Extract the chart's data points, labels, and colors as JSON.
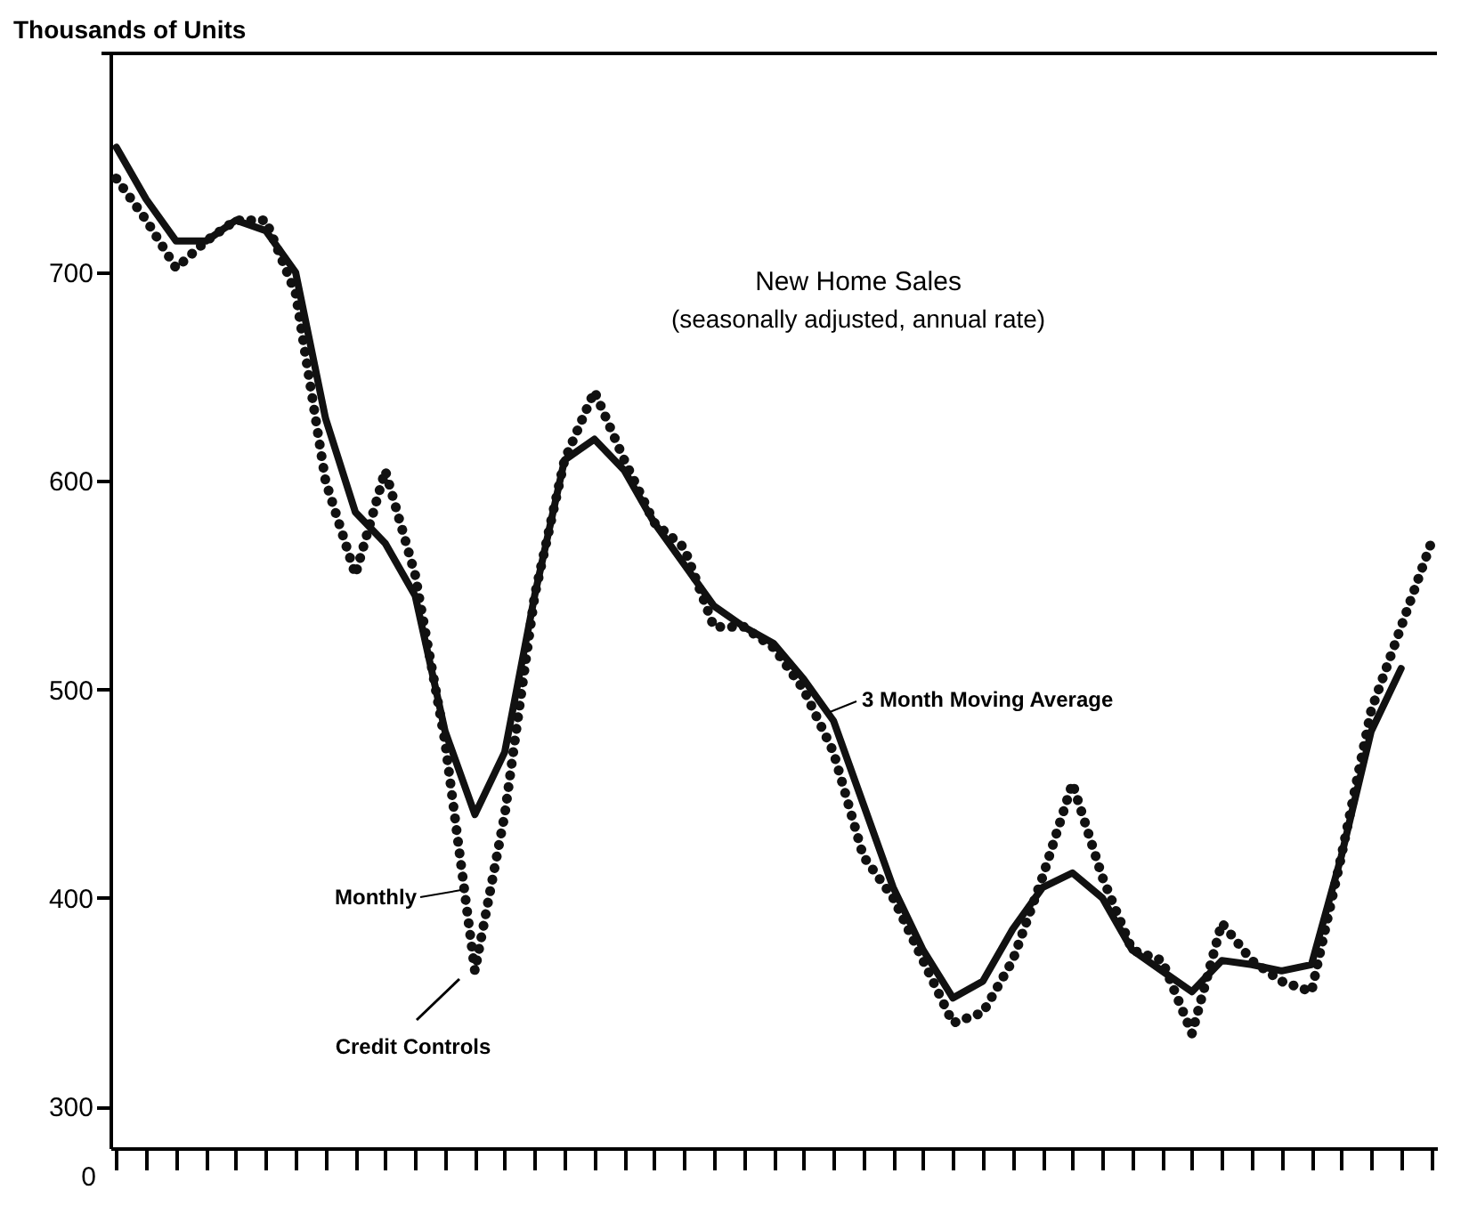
{
  "chart_data": {
    "type": "line",
    "title": "New Home Sales",
    "subtitle": "(seasonally adjusted, annual rate)",
    "ylabel": "Thousands of Units",
    "categories": [
      null,
      null,
      null,
      null,
      null,
      null,
      null,
      null,
      null,
      null,
      null,
      null,
      null,
      null,
      null,
      null,
      null,
      null,
      null,
      null,
      null,
      null,
      null,
      null,
      null,
      null,
      null,
      null,
      null,
      null,
      null,
      null,
      null,
      null,
      null,
      null,
      null,
      null,
      null,
      null,
      null,
      null,
      null,
      null,
      null
    ],
    "series": [
      {
        "name": "Monthly",
        "color": "#111111",
        "line_style": "dotted",
        "values": [
          745,
          725,
          702,
          715,
          725,
          725,
          690,
          600,
          555,
          605,
          555,
          475,
          365,
          440,
          545,
          610,
          643,
          610,
          580,
          568,
          530,
          530,
          520,
          500,
          470,
          420,
          400,
          370,
          340,
          345,
          370,
          410,
          455,
          410,
          375,
          370,
          335,
          388,
          370,
          360,
          355,
          420,
          490,
          530,
          570
        ]
      },
      {
        "name": "3 Month Moving Average",
        "color": "#111111",
        "line_style": "solid",
        "values": [
          760,
          735,
          715,
          715,
          725,
          720,
          700,
          630,
          585,
          570,
          545,
          480,
          440,
          470,
          545,
          610,
          620,
          605,
          580,
          560,
          540,
          530,
          522,
          505,
          485,
          445,
          405,
          375,
          352,
          360,
          385,
          405,
          412,
          400,
          375,
          365,
          355,
          370,
          368,
          365,
          368,
          420,
          480,
          510,
          null
        ]
      }
    ],
    "annotations": [
      "Credit Controls",
      "0"
    ],
    "ylim": [
      280,
      805
    ],
    "yticks": [
      300,
      400,
      500,
      600,
      700
    ],
    "tick_labels": "y",
    "grid": false,
    "marker": "none"
  }
}
